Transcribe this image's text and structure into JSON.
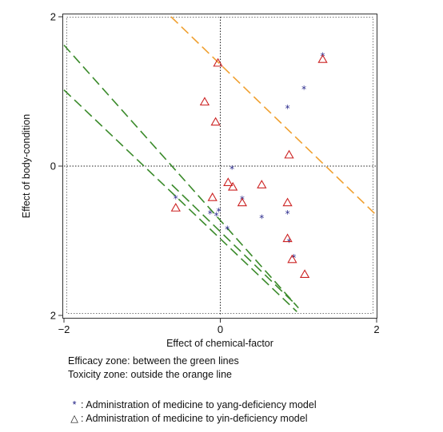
{
  "chart_data": {
    "type": "scatter",
    "xlabel": "Effect of chemical-factor",
    "ylabel": "Effect of body-condition",
    "xlim": [
      -2,
      2
    ],
    "ylim": [
      -2,
      2
    ],
    "x_ticks": [
      "−2",
      "0",
      "2"
    ],
    "y_ticks": [
      "2",
      "0",
      "2"
    ],
    "grid": false,
    "reference_lines": [
      "x = 0",
      "y = 0"
    ],
    "series": [
      {
        "name": "Administration of medicine to yang-deficiency model",
        "marker": "*",
        "color": "#2a2a8c",
        "points": [
          [
            -0.57,
            -0.43
          ],
          [
            -0.13,
            -0.63
          ],
          [
            -0.05,
            -0.66
          ],
          [
            -0.02,
            -0.6
          ],
          [
            0.15,
            -0.03
          ],
          [
            0.28,
            -0.44
          ],
          [
            0.09,
            -0.84
          ],
          [
            0.53,
            -0.69
          ],
          [
            0.86,
            0.78
          ],
          [
            0.86,
            -0.63
          ],
          [
            0.88,
            -1.01
          ],
          [
            0.94,
            -1.22
          ],
          [
            1.07,
            1.04
          ],
          [
            1.31,
            1.48
          ]
        ]
      },
      {
        "name": "Administration of medicine to yin-deficiency model",
        "marker": "triangle",
        "color": "#cc2222",
        "points": [
          [
            -0.57,
            -0.56
          ],
          [
            -0.2,
            0.86
          ],
          [
            -0.1,
            -0.42
          ],
          [
            -0.06,
            0.59
          ],
          [
            -0.03,
            1.38
          ],
          [
            0.1,
            -0.22
          ],
          [
            0.16,
            -0.28
          ],
          [
            0.28,
            -0.49
          ],
          [
            0.53,
            -0.25
          ],
          [
            0.86,
            -0.49
          ],
          [
            0.86,
            -0.97
          ],
          [
            0.88,
            0.15
          ],
          [
            0.92,
            -1.25
          ],
          [
            1.08,
            -1.45
          ],
          [
            1.31,
            1.43
          ]
        ]
      }
    ],
    "lines": [
      {
        "name": "efficacy boundary upper",
        "color": "#3a8a2a",
        "points": [
          [
            -2.0,
            1.62
          ],
          [
            1.0,
            -1.9
          ]
        ]
      },
      {
        "name": "efficacy boundary lower",
        "color": "#3a8a2a",
        "points": [
          [
            -2.0,
            1.02
          ],
          [
            0.98,
            -1.95
          ]
        ]
      },
      {
        "name": "efficacy boundary lowest",
        "color": "#3a8a2a",
        "points": [
          [
            -0.62,
            -0.25
          ],
          [
            0.97,
            -1.86
          ]
        ]
      },
      {
        "name": "toxicity boundary",
        "color": "#f0a030",
        "points": [
          [
            -0.63,
            2.0
          ],
          [
            2.0,
            -0.66
          ]
        ]
      }
    ]
  },
  "notes": {
    "efficacy": "Efficacy zone: between the green lines",
    "toxicity": "Toxicity zone: outside the orange line"
  },
  "legend": {
    "items": [
      {
        "symbol": "*",
        "text": ": Administration of medicine to yang-deficiency model"
      },
      {
        "symbol": "△",
        "text": ": Administration of medicine to yin-deficiency model"
      }
    ]
  }
}
